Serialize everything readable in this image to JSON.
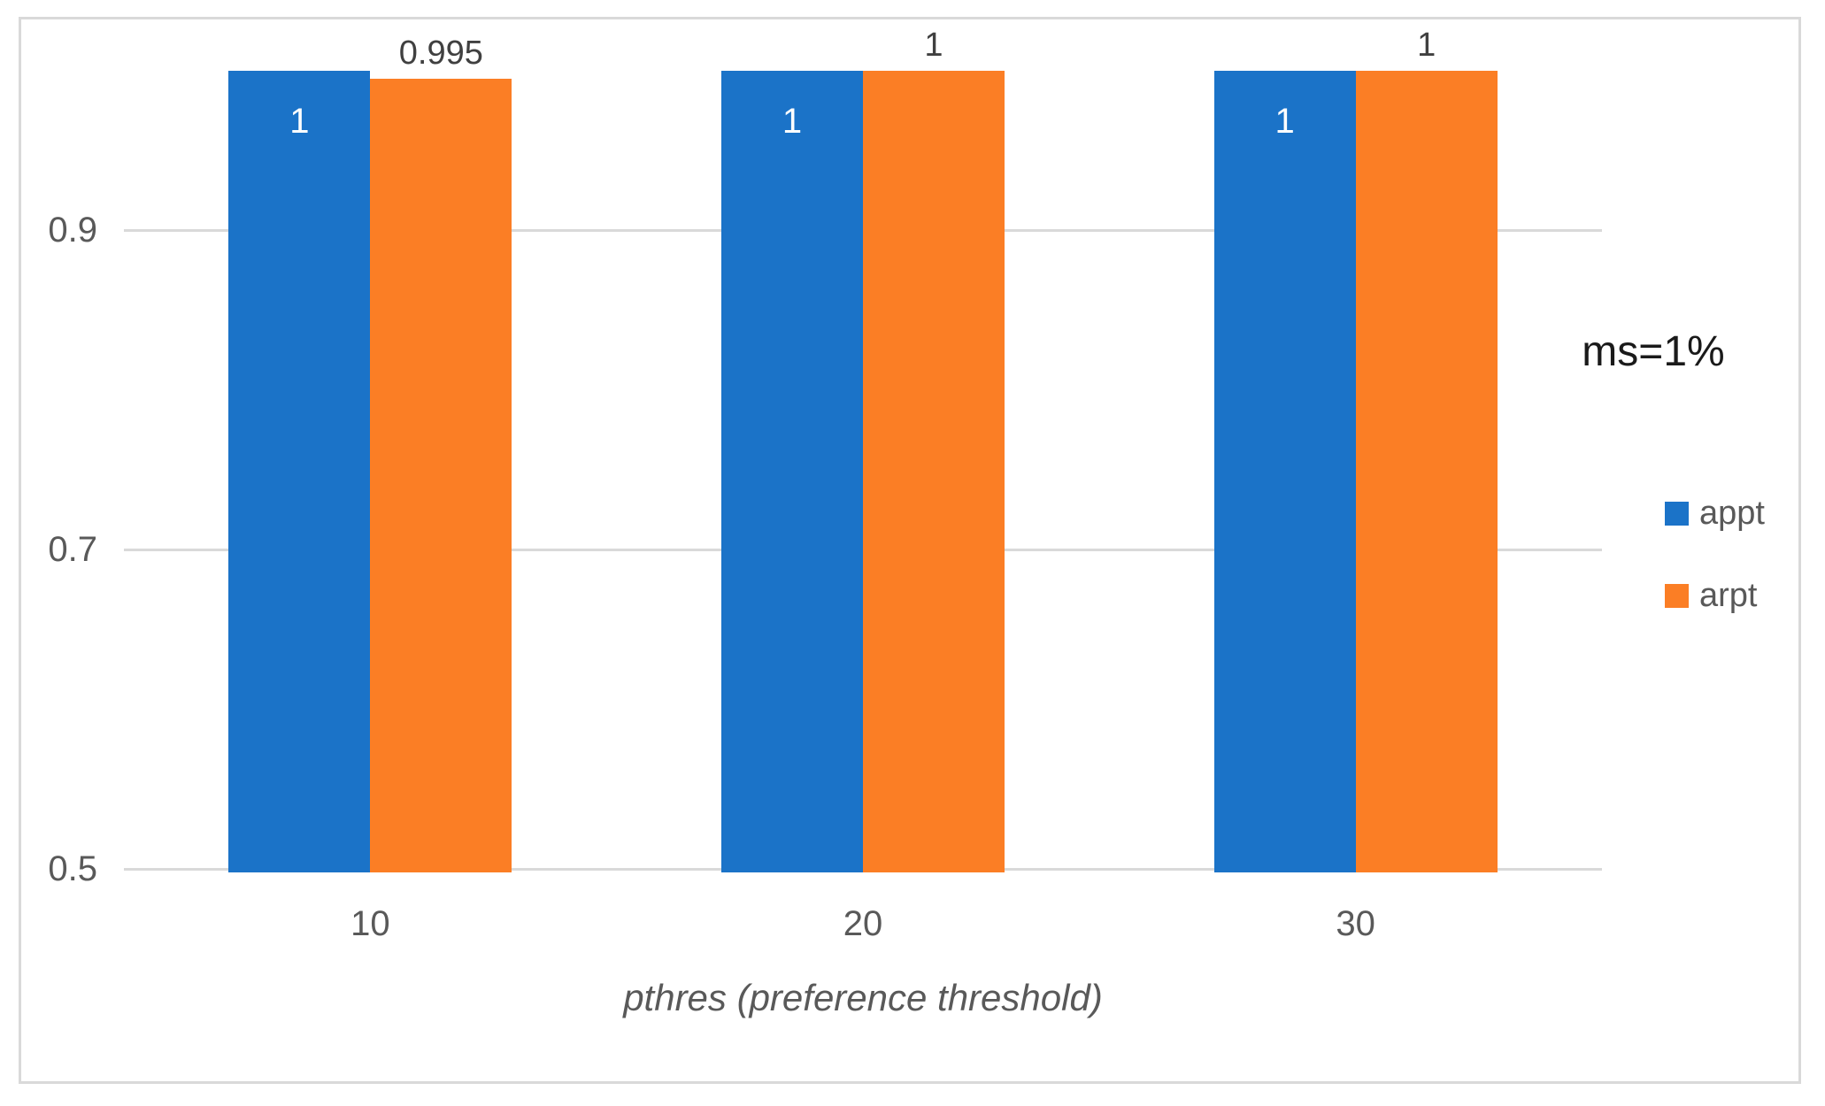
{
  "chart_data": {
    "type": "bar",
    "title": "",
    "xlabel": "pthres (preference threshold)",
    "ylabel": "",
    "categories": [
      "10",
      "20",
      "30"
    ],
    "series": [
      {
        "name": "appt",
        "color": "#1b73c8",
        "values": [
          1,
          1,
          1
        ],
        "labels": [
          "1",
          "1",
          "1"
        ],
        "label_position": "inside-top",
        "label_color": "#ffffff"
      },
      {
        "name": "arpt",
        "color": "#fb7e25",
        "values": [
          0.995,
          1,
          1
        ],
        "labels": [
          "0.995",
          "1",
          "1"
        ],
        "label_position": "above",
        "label_color": "#404040"
      }
    ],
    "yticks": [
      0.5,
      0.7,
      0.9
    ],
    "ytick_labels": [
      "0.5",
      "0.7",
      "0.9"
    ],
    "ylim": [
      0.5,
      1.03
    ],
    "grid": "horizontal",
    "legend_position": "right",
    "annotation": "ms=1%"
  },
  "colors": {
    "series_appt": "#1b73c8",
    "series_arpt": "#fb7e25",
    "gridline": "#d9d9d9",
    "frame_border": "#d9d9d9",
    "axis_text": "#595959",
    "annotation_text": "#1a1a1a"
  }
}
